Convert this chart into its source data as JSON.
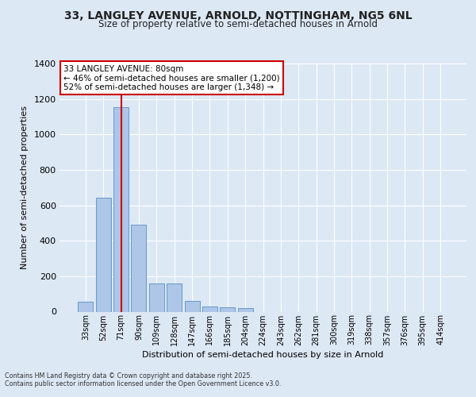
{
  "title_line1": "33, LANGLEY AVENUE, ARNOLD, NOTTINGHAM, NG5 6NL",
  "title_line2": "Size of property relative to semi-detached houses in Arnold",
  "xlabel": "Distribution of semi-detached houses by size in Arnold",
  "ylabel": "Number of semi-detached properties",
  "categories": [
    "33sqm",
    "52sqm",
    "71sqm",
    "90sqm",
    "109sqm",
    "128sqm",
    "147sqm",
    "166sqm",
    "185sqm",
    "204sqm",
    "224sqm",
    "243sqm",
    "262sqm",
    "281sqm",
    "300sqm",
    "319sqm",
    "338sqm",
    "357sqm",
    "376sqm",
    "395sqm",
    "414sqm"
  ],
  "values": [
    55,
    645,
    1155,
    490,
    158,
    158,
    60,
    30,
    25,
    18,
    0,
    0,
    0,
    0,
    0,
    0,
    0,
    0,
    0,
    0,
    0
  ],
  "bar_color": "#aec6e8",
  "bar_edge_color": "#6699cc",
  "vline_x": 2,
  "vline_color": "#cc0000",
  "annotation_title": "33 LANGLEY AVENUE: 80sqm",
  "annotation_line2": "← 46% of semi-detached houses are smaller (1,200)",
  "annotation_line3": "52% of semi-detached houses are larger (1,348) →",
  "annotation_box_color": "#cc0000",
  "ylim": [
    0,
    1400
  ],
  "yticks": [
    0,
    200,
    400,
    600,
    800,
    1000,
    1200,
    1400
  ],
  "bg_color": "#dde8f5",
  "plot_bg_color": "#dde8f5",
  "grid_color": "#ffffff",
  "footer_line1": "Contains HM Land Registry data © Crown copyright and database right 2025.",
  "footer_line2": "Contains public sector information licensed under the Open Government Licence v3.0."
}
